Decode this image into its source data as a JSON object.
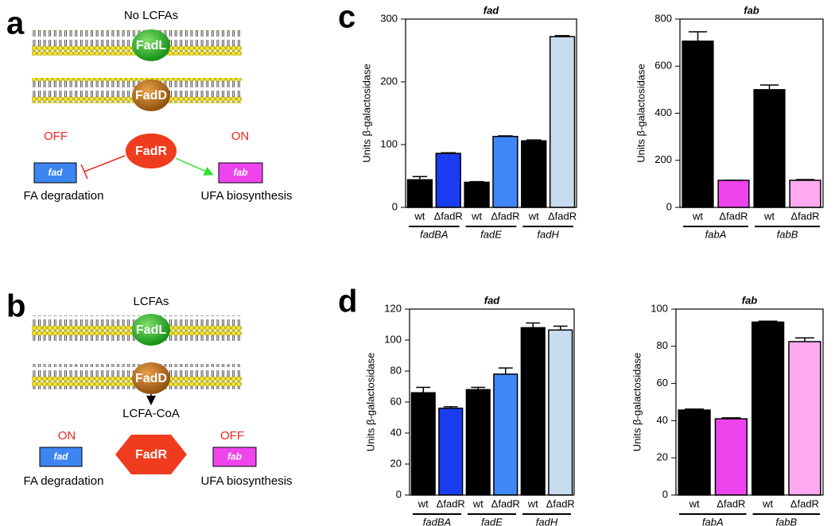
{
  "panel_labels": [
    "a",
    "b",
    "c",
    "d"
  ],
  "diagram_a": {
    "condition": "No LCFAs",
    "transporter": "FadL",
    "synthetase": "FadD",
    "regulator": "FadR",
    "left_state": "OFF",
    "right_state": "ON",
    "left_gene": "fad",
    "right_gene": "fab",
    "left_process": "FA degradation",
    "right_process": "UFA biosynthesis"
  },
  "diagram_b": {
    "condition": "LCFAs",
    "transporter": "FadL",
    "synthetase": "FadD",
    "product": "LCFA-CoA",
    "regulator": "FadR",
    "left_state": "ON",
    "right_state": "OFF",
    "left_gene": "fad",
    "right_gene": "fab",
    "left_process": "FA degradation",
    "right_process": "UFA biosynthesis"
  },
  "chart_data": [
    {
      "type": "bar",
      "title": "fad",
      "ylabel": "Units β-galactosidase",
      "categories": [
        "wt",
        "ΔfadR",
        "wt",
        "ΔfadR",
        "wt",
        "ΔfadR"
      ],
      "groups": [
        "fadBA",
        "fadE",
        "fadH"
      ],
      "values": [
        44,
        86,
        40,
        113,
        106,
        272
      ],
      "errors": [
        5,
        1,
        1,
        1,
        1.5,
        1.5
      ],
      "colors": [
        "#000000",
        "#1a3cf0",
        "#000000",
        "#3f86f7",
        "#000000",
        "#c8dcf0"
      ],
      "ylim": [
        0,
        300
      ],
      "yticks": [
        0,
        100,
        200,
        300
      ]
    },
    {
      "type": "bar",
      "title": "fab",
      "ylabel": "Units β-galactosidase",
      "categories": [
        "wt",
        "ΔfadR",
        "wt",
        "ΔfadR"
      ],
      "groups": [
        "fabA",
        "fabB"
      ],
      "values": [
        706,
        115,
        500,
        115
      ],
      "errors": [
        40,
        0,
        20,
        3
      ],
      "colors": [
        "#000000",
        "#ee44ee",
        "#000000",
        "#ffaaf0"
      ],
      "ylim": [
        0,
        800
      ],
      "yticks": [
        0,
        200,
        400,
        600,
        800
      ]
    },
    {
      "type": "bar",
      "title": "fad",
      "ylabel": "Units β-galactosidase",
      "categories": [
        "wt",
        "ΔfadR",
        "wt",
        "ΔfadR",
        "wt",
        "ΔfadR"
      ],
      "groups": [
        "fadBA",
        "fadE",
        "fadH"
      ],
      "values": [
        66,
        56,
        68,
        78,
        108,
        106.5
      ],
      "errors": [
        3.5,
        1,
        1.5,
        4,
        3,
        2.5
      ],
      "colors": [
        "#000000",
        "#1a3cf0",
        "#000000",
        "#3f86f7",
        "#000000",
        "#c8dcf0"
      ],
      "ylim": [
        0,
        120
      ],
      "yticks": [
        0,
        20,
        40,
        60,
        80,
        100,
        120
      ]
    },
    {
      "type": "bar",
      "title": "fab",
      "ylabel": "Units β-galactosidase",
      "categories": [
        "wt",
        "ΔfadR",
        "wt",
        "ΔfadR"
      ],
      "groups": [
        "fabA",
        "fabB"
      ],
      "values": [
        45.7,
        41,
        93,
        82.5
      ],
      "errors": [
        0.5,
        0.5,
        0.5,
        2
      ],
      "colors": [
        "#000000",
        "#ee44ee",
        "#000000",
        "#ffaaf0"
      ],
      "ylim": [
        0,
        100
      ],
      "yticks": [
        0,
        20,
        40,
        60,
        80,
        100
      ]
    }
  ]
}
